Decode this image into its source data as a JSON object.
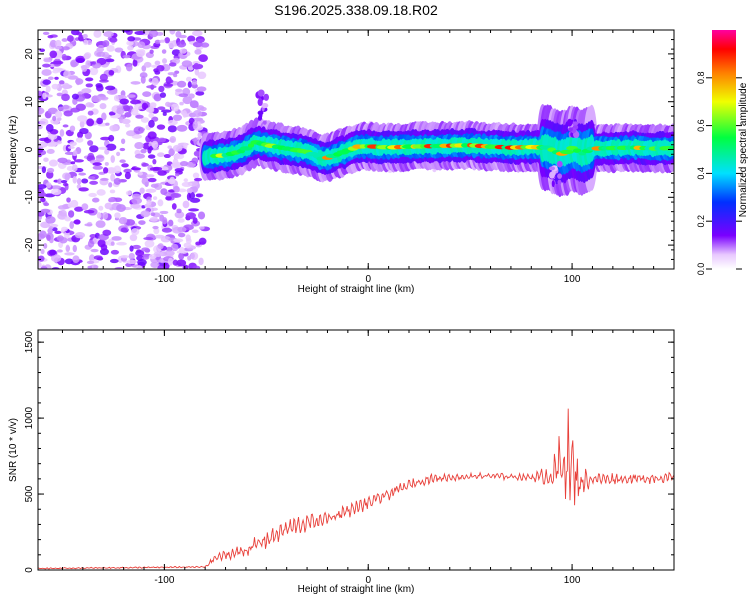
{
  "title": "S196.2025.338.09.18.R02",
  "colors": {
    "snr_line": "#e8403a",
    "background": "#ffffff",
    "noise": "#8a2be2"
  },
  "chart_data": [
    {
      "type": "heatmap",
      "xlabel": "Height of straight line (km)",
      "ylabel": "Frequency (Hz)",
      "xlim": [
        -162,
        150
      ],
      "ylim": [
        -25,
        25
      ],
      "x_ticks": [
        -100,
        0,
        100
      ],
      "y_ticks": [
        -20,
        -10,
        0,
        10,
        20
      ],
      "colorbar": {
        "label": "Normalized spectral amplitude",
        "range": [
          0,
          1
        ],
        "ticks": [
          "0.0",
          "0.2",
          "0.4",
          "0.6",
          "0.8"
        ],
        "tick_values": [
          0.0,
          0.2,
          0.4,
          0.6,
          0.8
        ]
      },
      "noise_region_x": [
        -162,
        -80
      ],
      "signal_start_x": -80,
      "ridge": {
        "x": [
          -80,
          -70,
          -62,
          -55,
          -48,
          -40,
          -30,
          -22,
          -15,
          -5,
          0,
          10,
          20,
          30,
          40,
          50,
          60,
          70,
          80,
          88,
          92,
          96,
          100,
          105,
          110,
          120,
          130,
          140,
          150
        ],
        "freq": [
          -1.5,
          -1.2,
          -0.3,
          1.5,
          0.8,
          0.2,
          -0.5,
          -2.0,
          -1.0,
          0.6,
          0.7,
          0.4,
          0.6,
          0.7,
          0.8,
          0.9,
          0.6,
          0.4,
          0.5,
          0.4,
          -0.5,
          -1.0,
          0.3,
          -0.8,
          0.2,
          0.3,
          0.4,
          0.2,
          0.3
        ]
      }
    },
    {
      "type": "line",
      "name": "SNR",
      "xlabel": "Height of straight line (km)",
      "ylabel": "SNR (10 * v/v)",
      "xlim": [
        -162,
        150
      ],
      "ylim": [
        0,
        1580
      ],
      "x_ticks": [
        -100,
        0,
        100
      ],
      "y_ticks": [
        0,
        500,
        1000,
        1500
      ],
      "envelope": {
        "x": [
          -162,
          -80,
          -75,
          -60,
          -50,
          -40,
          -30,
          -20,
          -10,
          0,
          10,
          20,
          30,
          40,
          60,
          80,
          90,
          95,
          98,
          100,
          102,
          105,
          110,
          130,
          150
        ],
        "mean": [
          10,
          20,
          80,
          130,
          200,
          270,
          310,
          340,
          390,
          440,
          500,
          560,
          600,
          610,
          620,
          610,
          620,
          700,
          750,
          650,
          600,
          580,
          600,
          600,
          610
        ],
        "spread": [
          8,
          10,
          50,
          90,
          120,
          130,
          120,
          110,
          100,
          90,
          80,
          70,
          60,
          50,
          45,
          45,
          150,
          500,
          600,
          550,
          350,
          200,
          80,
          70,
          70
        ]
      }
    }
  ]
}
